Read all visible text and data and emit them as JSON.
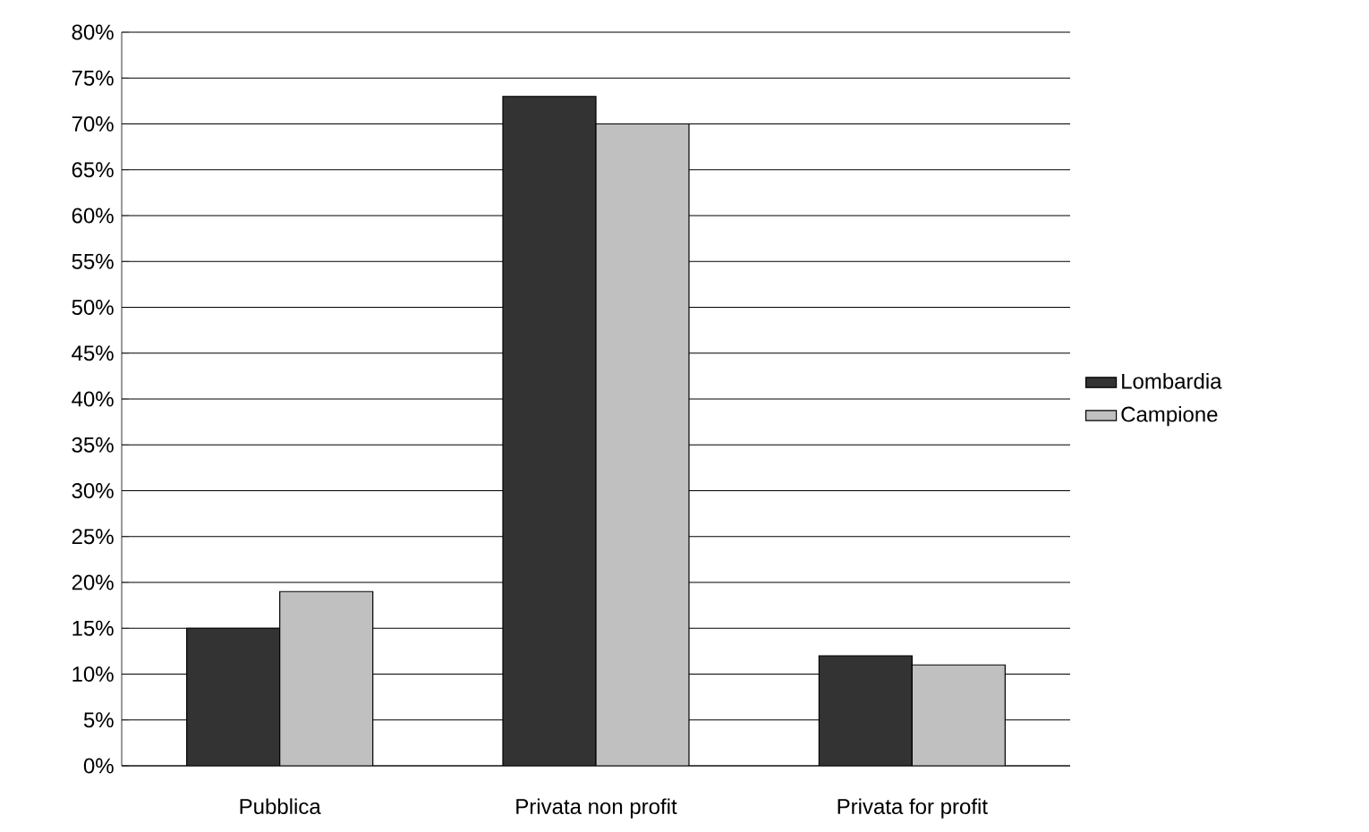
{
  "chart_data": {
    "type": "bar",
    "categories": [
      "Pubblica",
      "Privata non profit",
      "Privata for profit"
    ],
    "series": [
      {
        "name": "Lombardia",
        "color": "#333333",
        "values": [
          15,
          73,
          12
        ]
      },
      {
        "name": "Campione",
        "color": "#c0c0c0",
        "values": [
          19,
          70,
          11
        ]
      }
    ],
    "ylim": [
      0,
      80
    ],
    "yticks": [
      {
        "value": 0,
        "label": "0%"
      },
      {
        "value": 5,
        "label": "5%"
      },
      {
        "value": 10,
        "label": "10%"
      },
      {
        "value": 15,
        "label": "15%"
      },
      {
        "value": 20,
        "label": "20%"
      },
      {
        "value": 25,
        "label": "25%"
      },
      {
        "value": 30,
        "label": "30%"
      },
      {
        "value": 35,
        "label": "35%"
      },
      {
        "value": 40,
        "label": "40%"
      },
      {
        "value": 45,
        "label": "45%"
      },
      {
        "value": 50,
        "label": "50%"
      },
      {
        "value": 55,
        "label": "55%"
      },
      {
        "value": 60,
        "label": "60%"
      },
      {
        "value": 65,
        "label": "65%"
      },
      {
        "value": 70,
        "label": "70%"
      },
      {
        "value": 75,
        "label": "75%"
      },
      {
        "value": 80,
        "label": "80%"
      }
    ],
    "grid": "y",
    "legend": "right"
  }
}
